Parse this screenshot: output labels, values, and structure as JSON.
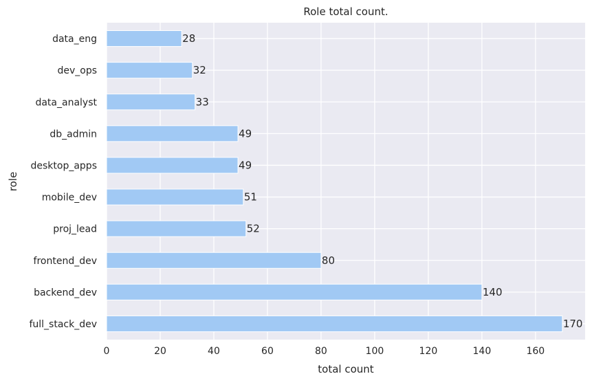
{
  "chart_data": {
    "type": "bar",
    "orientation": "horizontal",
    "title": "Role total count.",
    "xlabel": "total count",
    "ylabel": "role",
    "categories": [
      "data_eng",
      "dev_ops",
      "data_analyst",
      "db_admin",
      "desktop_apps",
      "mobile_dev",
      "proj_lead",
      "frontend_dev",
      "backend_dev",
      "full_stack_dev"
    ],
    "values": [
      28,
      32,
      33,
      49,
      49,
      51,
      52,
      80,
      140,
      170
    ],
    "x_ticks": [
      "0",
      "20",
      "40",
      "60",
      "80",
      "100",
      "120",
      "140",
      "160"
    ],
    "xlim": [
      0,
      178.5
    ],
    "grid": true,
    "bar_color": "#a1c9f4",
    "background_color": "#eaeaf2",
    "grid_color": "#ffffff"
  }
}
